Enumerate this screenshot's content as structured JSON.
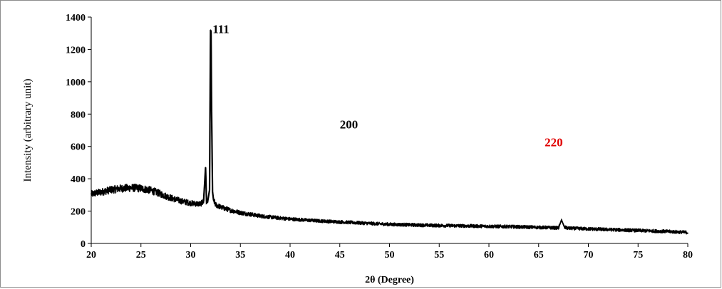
{
  "chart_data": {
    "type": "line",
    "title": "",
    "xlabel": "2θ (Degree)",
    "ylabel": "Intensity (arbitrary unit)",
    "xlim": [
      20,
      80
    ],
    "ylim": [
      0,
      1400
    ],
    "x_ticks": [
      "20",
      "25",
      "30",
      "35",
      "40",
      "45",
      "50",
      "55",
      "60",
      "65",
      "70",
      "75",
      "80"
    ],
    "y_ticks": [
      "0",
      "200",
      "400",
      "600",
      "800",
      "1000",
      "1200",
      "1400"
    ],
    "grid": false,
    "legend": "none",
    "line_color": "#000000",
    "series": [
      {
        "x": [
          20,
          20.5,
          21,
          21.5,
          22,
          22.5,
          23,
          23.5,
          24,
          24.5,
          25,
          25.5,
          26,
          26.5,
          27,
          27.5,
          28,
          28.5,
          29,
          29.5,
          30,
          30.5,
          31,
          31.3,
          31.5,
          31.6,
          31.7,
          31.9,
          32.0,
          32.05,
          32.1,
          32.2,
          32.3,
          32.5,
          33,
          33.5,
          34,
          34.5,
          35,
          36,
          37,
          38,
          39,
          40,
          42,
          44,
          46,
          48,
          50,
          52,
          54,
          56,
          58,
          60,
          62,
          64,
          66,
          67,
          67.3,
          67.6,
          68,
          70,
          72,
          74,
          76,
          78,
          80
        ],
        "y": [
          305,
          312,
          318,
          325,
          332,
          336,
          340,
          342,
          344,
          343,
          340,
          335,
          328,
          318,
          306,
          293,
          282,
          272,
          263,
          256,
          250,
          246,
          244,
          260,
          470,
          250,
          255,
          330,
          1320,
          1310,
          860,
          320,
          270,
          240,
          225,
          215,
          205,
          198,
          190,
          180,
          170,
          163,
          157,
          151,
          143,
          136,
          130,
          124,
          118,
          115,
          112,
          110,
          108,
          106,
          104,
          101,
          98,
          96,
          145,
          100,
          94,
          90,
          86,
          82,
          78,
          74,
          68
        ]
      }
    ],
    "annotations": [
      {
        "text": "111",
        "x": 32.2,
        "y": 1300,
        "color": "#000000"
      },
      {
        "text": "200",
        "x": 45.0,
        "y": 710,
        "color": "#000000"
      },
      {
        "text": "220",
        "x": 65.6,
        "y": 600,
        "color": "#e00000"
      }
    ]
  }
}
